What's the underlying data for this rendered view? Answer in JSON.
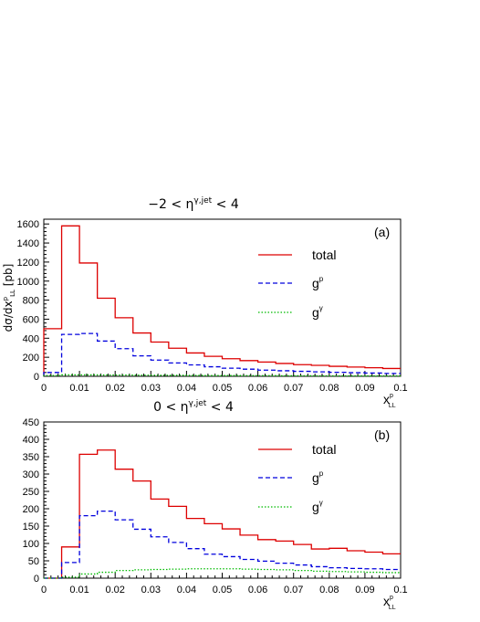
{
  "chart_data": [
    {
      "type": "line",
      "panel_tag": "(a)",
      "title_parts": [
        "−2 < ",
        "η",
        "γ,jet",
        " < 4"
      ],
      "ylabel_parts": [
        "dσ/dx",
        "p",
        "LL",
        " [pb]"
      ],
      "xlabel_parts": [
        "x",
        "p",
        "LL"
      ],
      "xlim": [
        0,
        0.1
      ],
      "ylim": [
        0,
        1650
      ],
      "x_ticks": [
        "0",
        "0.01",
        "0.02",
        "0.03",
        "0.04",
        "0.05",
        "0.06",
        "0.07",
        "0.08",
        "0.09",
        "0.1"
      ],
      "y_ticks": [
        "0",
        "200",
        "400",
        "600",
        "800",
        "1000",
        "1200",
        "1400",
        "1600"
      ],
      "grid": false,
      "legend_position": "right",
      "bin_edges": [
        0,
        0.005,
        0.01,
        0.015,
        0.02,
        0.025,
        0.03,
        0.035,
        0.04,
        0.045,
        0.05,
        0.055,
        0.06,
        0.065,
        0.07,
        0.075,
        0.08,
        0.085,
        0.09,
        0.095,
        0.1
      ],
      "series": [
        {
          "name": "total",
          "color": "#dd0000",
          "style": "solid",
          "values": [
            500,
            1580,
            1190,
            820,
            615,
            455,
            360,
            295,
            245,
            210,
            185,
            165,
            150,
            135,
            122,
            115,
            105,
            97,
            90,
            82
          ]
        },
        {
          "name_parts": [
            "g",
            "p"
          ],
          "color": "#0000dd",
          "style": "dashed",
          "values": [
            40,
            440,
            450,
            370,
            290,
            215,
            170,
            140,
            120,
            100,
            85,
            75,
            65,
            58,
            52,
            47,
            42,
            38,
            34,
            30
          ]
        },
        {
          "name_parts": [
            "g",
            "γ"
          ],
          "color": "#00bb00",
          "style": "dotted",
          "values": [
            8,
            15,
            15,
            14,
            13,
            12,
            11,
            10,
            9,
            8,
            8,
            7,
            7,
            6,
            6,
            5,
            5,
            5,
            4,
            4
          ]
        }
      ]
    },
    {
      "type": "line",
      "panel_tag": "(b)",
      "title_parts": [
        "0 < ",
        "η",
        "γ,jet",
        " < 4"
      ],
      "xlabel_parts": [
        "x",
        "p",
        "LL"
      ],
      "xlim": [
        0,
        0.1
      ],
      "ylim": [
        0,
        450
      ],
      "x_ticks": [
        "0",
        "0.01",
        "0.02",
        "0.03",
        "0.04",
        "0.05",
        "0.06",
        "0.07",
        "0.08",
        "0.09",
        "0.1"
      ],
      "y_ticks": [
        "0",
        "50",
        "100",
        "150",
        "200",
        "250",
        "300",
        "350",
        "400",
        "450"
      ],
      "grid": false,
      "legend_position": "right",
      "bin_edges": [
        0,
        0.005,
        0.01,
        0.015,
        0.02,
        0.025,
        0.03,
        0.035,
        0.04,
        0.045,
        0.05,
        0.055,
        0.06,
        0.065,
        0.07,
        0.075,
        0.08,
        0.085,
        0.09,
        0.095,
        0.1
      ],
      "series": [
        {
          "name": "total",
          "color": "#dd0000",
          "style": "solid",
          "values": [
            0,
            90,
            357,
            369,
            314,
            280,
            228,
            207,
            172,
            157,
            142,
            124,
            111,
            107,
            97,
            84,
            86,
            79,
            75,
            70
          ]
        },
        {
          "name_parts": [
            "g",
            "p"
          ],
          "color": "#0000dd",
          "style": "dashed",
          "values": [
            0,
            45,
            180,
            193,
            168,
            141,
            119,
            103,
            85,
            69,
            62,
            54,
            49,
            43,
            38,
            33,
            30,
            28,
            27,
            25
          ]
        },
        {
          "name_parts": [
            "g",
            "γ"
          ],
          "color": "#00bb00",
          "style": "dotted",
          "values": [
            0,
            3,
            12,
            17,
            22,
            24,
            25,
            26,
            27,
            27,
            27,
            26,
            25,
            24,
            22,
            20,
            19,
            18,
            17,
            16
          ]
        }
      ]
    }
  ]
}
